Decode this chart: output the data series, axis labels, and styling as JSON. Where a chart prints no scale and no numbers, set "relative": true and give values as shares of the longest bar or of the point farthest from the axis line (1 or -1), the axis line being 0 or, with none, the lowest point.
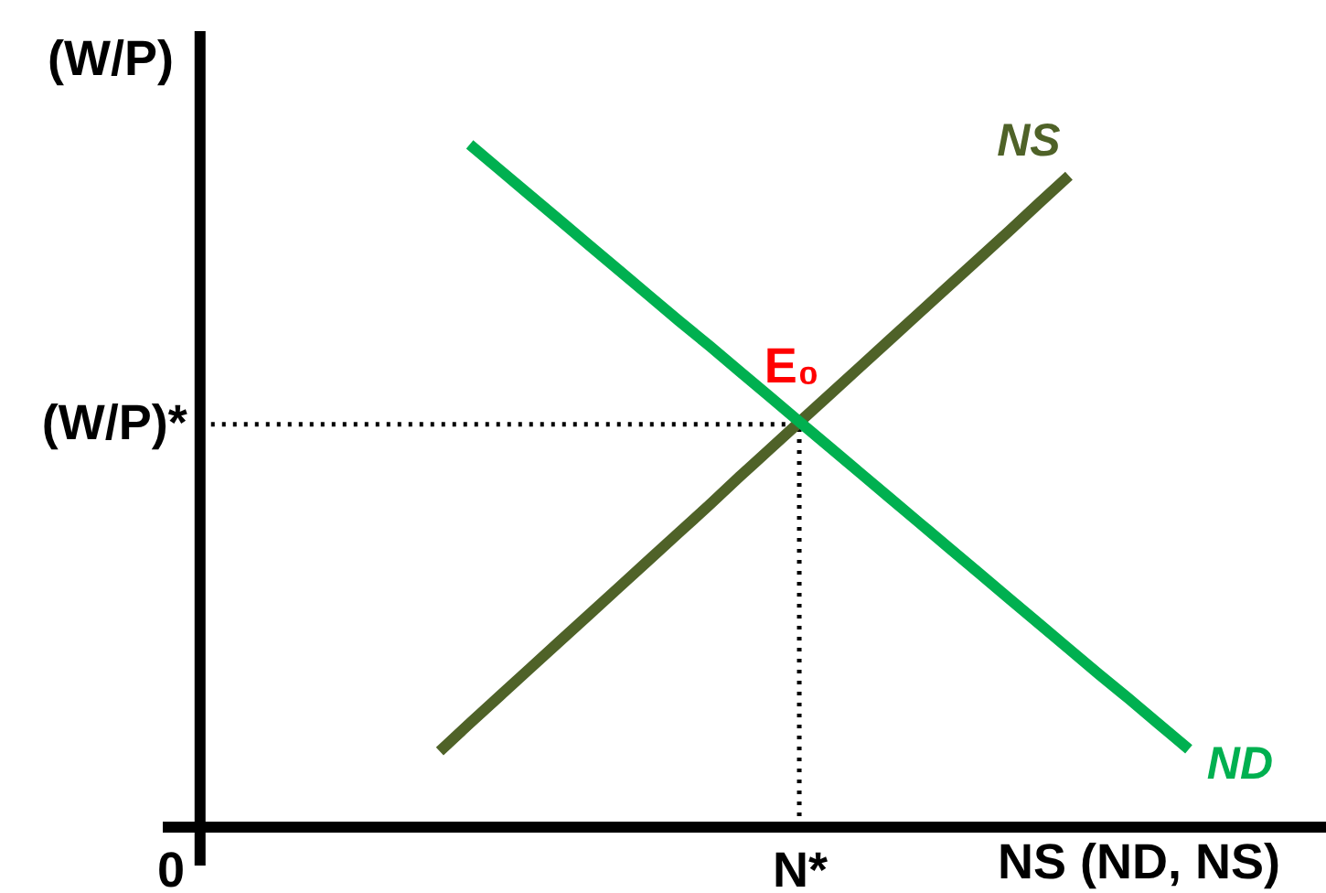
{
  "chart_data": {
    "type": "line",
    "relative": true,
    "xlabel": "NS (ND, NS)",
    "ylabel": "(W/P)",
    "categories": [
      "0",
      null,
      null,
      null,
      null,
      null,
      null,
      null,
      null,
      null,
      null,
      null,
      null,
      null,
      null,
      null,
      null,
      null,
      null,
      null,
      null,
      "N*",
      null,
      null,
      null,
      null,
      null,
      null,
      null,
      null,
      null,
      null,
      null,
      null,
      null,
      null,
      null,
      null,
      null
    ],
    "series": [
      {
        "name": "NS",
        "color": "#4f6228",
        "values": [
          null,
          null,
          null,
          null,
          null,
          null,
          null,
          null,
          null,
          0.111,
          0.152,
          0.192,
          0.232,
          0.272,
          0.312,
          0.352,
          0.392,
          0.432,
          0.472,
          0.513,
          0.553,
          0.593,
          0.633,
          0.673,
          0.713,
          0.753,
          0.793,
          0.833,
          0.873,
          0.914,
          0.954,
          null,
          null,
          null,
          null,
          null,
          null,
          null,
          null
        ]
      },
      {
        "name": "ND",
        "color": "#00b050",
        "values": [
          null,
          null,
          null,
          null,
          null,
          null,
          null,
          null,
          null,
          null,
          1.0,
          0.963,
          0.926,
          0.889,
          0.852,
          0.815,
          0.778,
          0.741,
          0.705,
          0.668,
          0.631,
          0.594,
          0.557,
          0.52,
          0.483,
          0.446,
          0.409,
          0.372,
          0.335,
          0.298,
          0.261,
          0.224,
          0.188,
          0.151,
          0.114,
          null,
          null,
          null,
          null
        ]
      }
    ],
    "ref_lines": [
      {
        "axis": "y",
        "value": 0.59,
        "label": "(W/P)*",
        "color": "#000000",
        "line_style": "dotted"
      },
      {
        "axis": "x",
        "value": "N*",
        "color": "#000000",
        "line_style": "dotted"
      }
    ],
    "annotations": [
      {
        "text": "E₀",
        "x": "N*",
        "y": 0.59
      }
    ]
  }
}
